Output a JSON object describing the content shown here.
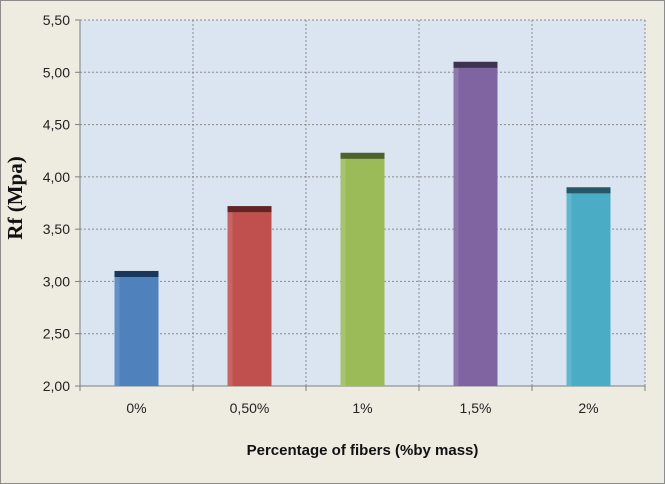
{
  "chart_data": {
    "type": "bar",
    "categories": [
      "0%",
      "0,50%",
      "1%",
      "1,5%",
      "2%"
    ],
    "values": [
      3.1,
      3.72,
      4.23,
      5.1,
      3.9
    ],
    "colors": [
      "#4f81bd",
      "#c0504d",
      "#9bbb59",
      "#8064a2",
      "#4bacc6"
    ],
    "cap_colors": [
      "#17375e",
      "#632523",
      "#4f6228",
      "#3f3151",
      "#215968"
    ],
    "title": "",
    "xlabel": "Percentage of fibers (%by mass)",
    "ylabel": "Rf (Mpa)",
    "ylim": [
      2.0,
      5.5
    ],
    "yticks": [
      "2,00",
      "2,50",
      "3,00",
      "3,50",
      "4,00",
      "4,50",
      "5,00",
      "5,50"
    ],
    "ytick_step": 0.5,
    "grid": true,
    "plot_background": "#dbe5f1",
    "legend": "none"
  }
}
